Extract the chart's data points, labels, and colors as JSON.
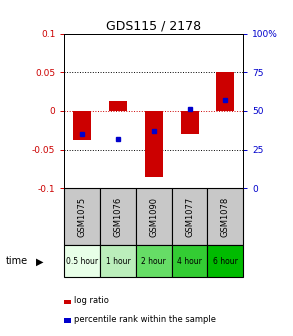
{
  "title": "GDS115 / 2178",
  "samples": [
    "GSM1075",
    "GSM1076",
    "GSM1090",
    "GSM1077",
    "GSM1078"
  ],
  "time_labels": [
    "0.5 hour",
    "1 hour",
    "2 hour",
    "4 hour",
    "6 hour"
  ],
  "time_colors": [
    "#e8ffe8",
    "#bbeebb",
    "#66dd66",
    "#33cc33",
    "#00bb00"
  ],
  "log_ratios": [
    -0.038,
    0.013,
    -0.085,
    -0.03,
    0.05
  ],
  "percentile_ranks": [
    35,
    32,
    37,
    51,
    57
  ],
  "ylim_left": [
    -0.1,
    0.1
  ],
  "ylim_right": [
    0,
    100
  ],
  "bar_color": "#cc0000",
  "dot_color": "#0000cc",
  "zero_line_color": "#cc0000",
  "left_tick_color": "#cc0000",
  "right_tick_color": "#0000cc",
  "gsm_bg": "#c8c8c8",
  "title_fontsize": 9,
  "tick_fontsize": 6.5,
  "bar_width": 0.5
}
